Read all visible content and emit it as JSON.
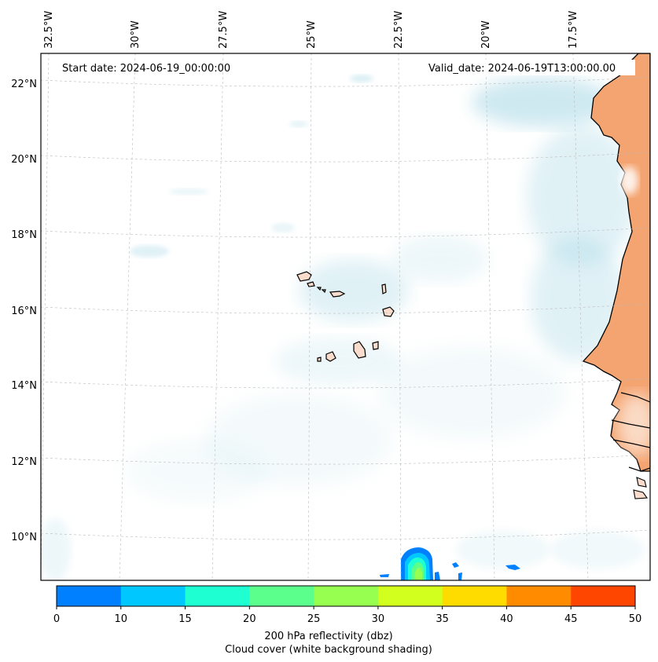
{
  "header": {
    "start_date": "Start date: 2024-06-19_00:00:00",
    "valid_date": "Valid_date: 2024-06-19T13:00:00.00"
  },
  "map": {
    "lon_labels": [
      "32.5°W",
      "30°W",
      "27.5°W",
      "25°W",
      "22.5°W",
      "20°W",
      "17.5°W"
    ],
    "lat_labels": [
      "22°N",
      "20°N",
      "18°N",
      "16°N",
      "14°N",
      "12°N",
      "10°N"
    ]
  },
  "colorbar": {
    "colors": [
      "#0080ff",
      "#00c8ff",
      "#1effd2",
      "#5aff8c",
      "#96ff50",
      "#d2ff1e",
      "#ffdc00",
      "#ff8c00",
      "#ff4600"
    ],
    "ticks": [
      "0",
      "10",
      "15",
      "20",
      "25",
      "30",
      "35",
      "40",
      "45",
      "50"
    ],
    "label_line1": "200 hPa reflectivity (dbz)",
    "label_line2": "Cloud cover (white background shading)"
  },
  "colors": {
    "land": "#f4a470",
    "island_fill": "#f9dccb",
    "cloud": "#a8d8e6",
    "grid": "#bbbbbb"
  }
}
